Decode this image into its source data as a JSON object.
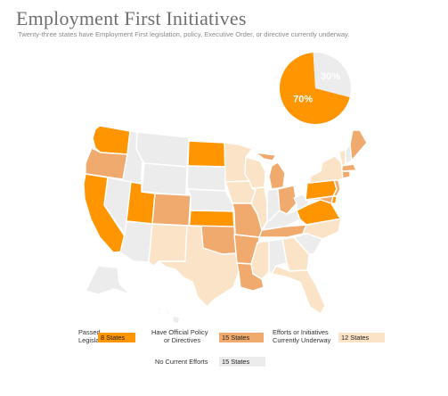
{
  "header": {
    "title": "Employment First Initiatives",
    "subtitle": "Twenty-three states have Employment First legislation, policy, Executive Order, or directive currently underway."
  },
  "colors": {
    "passed": "#ff9500",
    "policy": "#f0aa6e",
    "underway": "#fbe3c8",
    "none": "#ececec",
    "border": "#ffffff"
  },
  "pie": {
    "slices": [
      {
        "label": "70%",
        "value": 70,
        "color": "#ff9500"
      },
      {
        "label": "30%",
        "value": 30,
        "color": "#ececec"
      }
    ]
  },
  "legend": [
    {
      "label_line1": "Passed",
      "label_line2": "Legislation",
      "count": "8 States",
      "color": "#ff9500"
    },
    {
      "label_line1": "Have Official Policy",
      "label_line2": "or Directives",
      "count": "15 States",
      "color": "#f0aa6e"
    },
    {
      "label_line1": "Efforts or Initiatives",
      "label_line2": "Currently Underway",
      "count": "12 States",
      "color": "#fbe3c8"
    },
    {
      "label_line1": "No Current Efforts",
      "label_line2": "",
      "count": "15 States",
      "color": "#ececec"
    }
  ],
  "map_states": [
    {
      "name": "WA",
      "category": "passed"
    },
    {
      "name": "OR",
      "category": "policy"
    },
    {
      "name": "CA",
      "category": "passed"
    },
    {
      "name": "ID",
      "category": "none"
    },
    {
      "name": "NV",
      "category": "none"
    },
    {
      "name": "MT",
      "category": "none"
    },
    {
      "name": "WY",
      "category": "none"
    },
    {
      "name": "UT",
      "category": "passed"
    },
    {
      "name": "AZ",
      "category": "none"
    },
    {
      "name": "CO",
      "category": "policy"
    },
    {
      "name": "NM",
      "category": "underway"
    },
    {
      "name": "ND",
      "category": "passed"
    },
    {
      "name": "SD",
      "category": "none"
    },
    {
      "name": "NE",
      "category": "none"
    },
    {
      "name": "KS",
      "category": "passed"
    },
    {
      "name": "OK",
      "category": "policy"
    },
    {
      "name": "TX",
      "category": "underway"
    },
    {
      "name": "MN",
      "category": "underway"
    },
    {
      "name": "IA",
      "category": "underway"
    },
    {
      "name": "MO",
      "category": "policy"
    },
    {
      "name": "AR",
      "category": "policy"
    },
    {
      "name": "LA",
      "category": "policy"
    },
    {
      "name": "WI",
      "category": "underway"
    },
    {
      "name": "IL",
      "category": "underway"
    },
    {
      "name": "MI",
      "category": "policy"
    },
    {
      "name": "IN",
      "category": "none"
    },
    {
      "name": "OH",
      "category": "policy"
    },
    {
      "name": "KY",
      "category": "none"
    },
    {
      "name": "TN",
      "category": "policy"
    },
    {
      "name": "MS",
      "category": "underway"
    },
    {
      "name": "AL",
      "category": "none"
    },
    {
      "name": "GA",
      "category": "underway"
    },
    {
      "name": "FL",
      "category": "underway"
    },
    {
      "name": "SC",
      "category": "none"
    },
    {
      "name": "NC",
      "category": "underway"
    },
    {
      "name": "VA",
      "category": "passed"
    },
    {
      "name": "WV",
      "category": "none"
    },
    {
      "name": "PA",
      "category": "passed"
    },
    {
      "name": "NY",
      "category": "underway"
    },
    {
      "name": "VT",
      "category": "underway"
    },
    {
      "name": "NH",
      "category": "none"
    },
    {
      "name": "ME",
      "category": "policy"
    },
    {
      "name": "MA",
      "category": "policy"
    },
    {
      "name": "CT",
      "category": "policy"
    },
    {
      "name": "NJ",
      "category": "policy"
    },
    {
      "name": "MD",
      "category": "policy"
    },
    {
      "name": "DE",
      "category": "passed"
    },
    {
      "name": "AK",
      "category": "none"
    },
    {
      "name": "HI",
      "category": "none"
    }
  ]
}
